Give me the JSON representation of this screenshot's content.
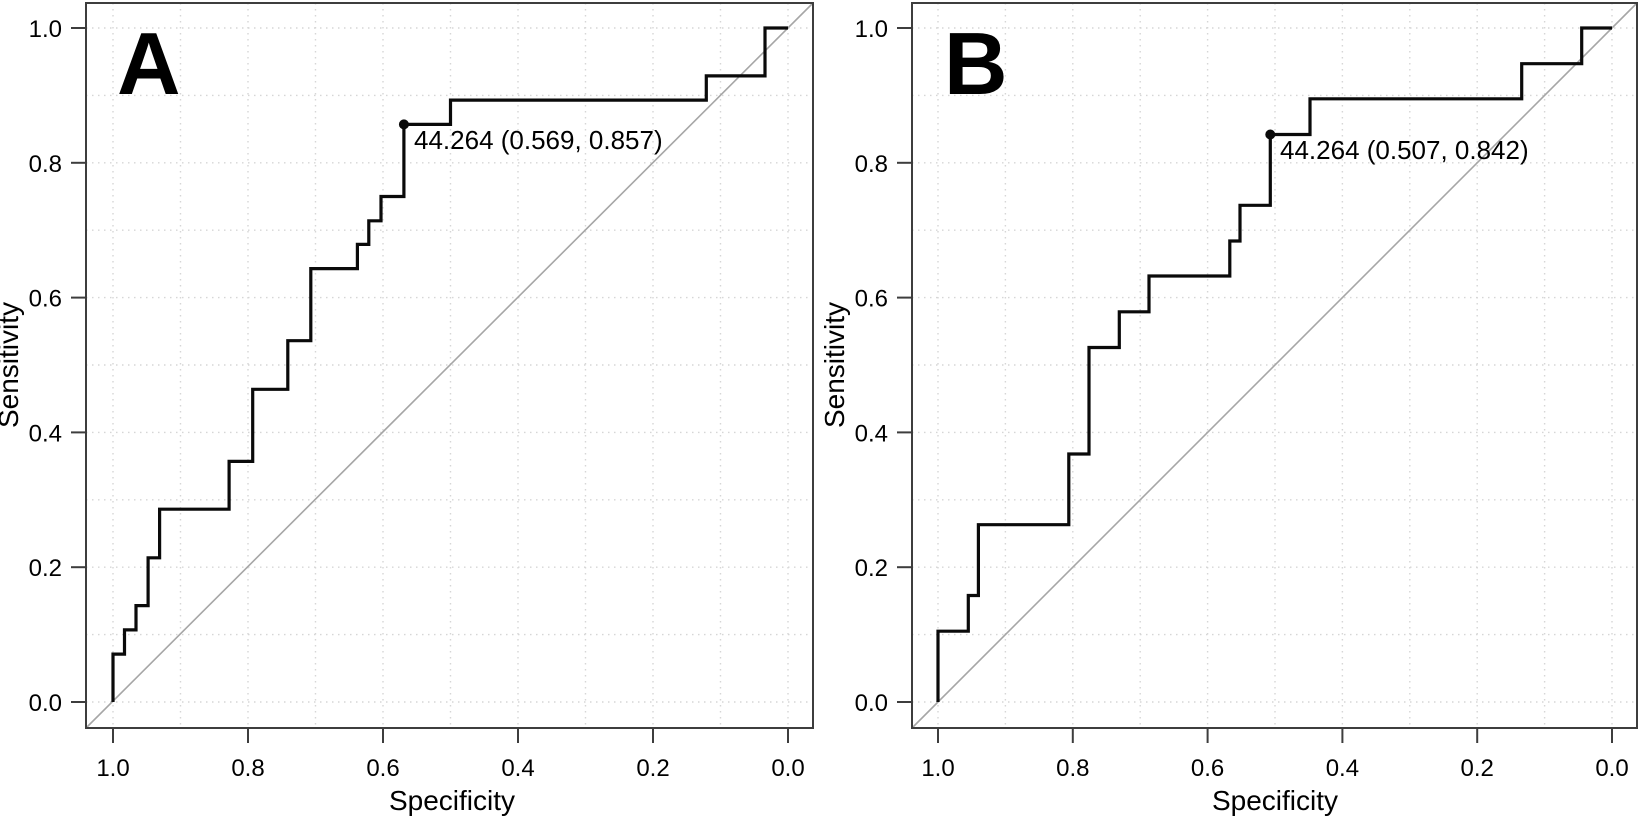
{
  "figure": {
    "type": "roc-comparison",
    "background": "#ffffff",
    "colors": {
      "curve": "#0a0a0a",
      "diagonal_line": "#a6a6a6",
      "gridlines": "#d6d6d6",
      "frame": "#3d3d3d",
      "tick_marks": "#3d3d3d",
      "text": "#000000",
      "marker": "#0a0a0a"
    }
  },
  "chart_data": [
    {
      "type": "line",
      "subtype": "roc-step-curve",
      "panel_label": "A",
      "xlabel": "Specificity",
      "ylabel": "Sensitivity",
      "x_axis": {
        "range": [
          1.0,
          0.0
        ],
        "reversed": true,
        "tick_values": [
          1.0,
          0.8,
          0.6,
          0.4,
          0.2,
          0.0
        ],
        "tick_labels": [
          "1.0",
          "0.8",
          "0.6",
          "0.4",
          "0.2",
          "0.0"
        ],
        "grid_step": 0.1,
        "grid_on": true
      },
      "y_axis": {
        "range": [
          0.0,
          1.0
        ],
        "tick_values": [
          0.0,
          0.2,
          0.4,
          0.6,
          0.8,
          1.0
        ],
        "tick_labels": [
          "0.0",
          "0.2",
          "0.4",
          "0.6",
          "0.8",
          "1.0"
        ],
        "grid_step": 0.1,
        "grid_on": true
      },
      "diagonal_reference_line": true,
      "series": [
        {
          "name": "ROC curve",
          "points": [
            [
              1.0,
              0.0
            ],
            [
              1.0,
              0.071
            ],
            [
              0.983,
              0.071
            ],
            [
              0.983,
              0.107
            ],
            [
              0.966,
              0.107
            ],
            [
              0.966,
              0.143
            ],
            [
              0.948,
              0.143
            ],
            [
              0.948,
              0.214
            ],
            [
              0.931,
              0.214
            ],
            [
              0.931,
              0.286
            ],
            [
              0.828,
              0.286
            ],
            [
              0.828,
              0.357
            ],
            [
              0.793,
              0.357
            ],
            [
              0.793,
              0.464
            ],
            [
              0.741,
              0.464
            ],
            [
              0.741,
              0.536
            ],
            [
              0.707,
              0.536
            ],
            [
              0.707,
              0.643
            ],
            [
              0.638,
              0.643
            ],
            [
              0.638,
              0.679
            ],
            [
              0.621,
              0.679
            ],
            [
              0.621,
              0.714
            ],
            [
              0.603,
              0.714
            ],
            [
              0.603,
              0.75
            ],
            [
              0.569,
              0.75
            ],
            [
              0.569,
              0.857
            ],
            [
              0.5,
              0.857
            ],
            [
              0.5,
              0.893
            ],
            [
              0.121,
              0.893
            ],
            [
              0.121,
              0.929
            ],
            [
              0.034,
              0.929
            ],
            [
              0.034,
              1.0
            ],
            [
              0.0,
              1.0
            ]
          ]
        }
      ],
      "best_threshold": {
        "label": "44.264 (0.569, 0.857)",
        "threshold": 44.264,
        "specificity": 0.569,
        "sensitivity": 0.857
      }
    },
    {
      "type": "line",
      "subtype": "roc-step-curve",
      "panel_label": "B",
      "xlabel": "Specificity",
      "ylabel": "Sensitivity",
      "x_axis": {
        "range": [
          1.0,
          0.0
        ],
        "reversed": true,
        "tick_values": [
          1.0,
          0.8,
          0.6,
          0.4,
          0.2,
          0.0
        ],
        "tick_labels": [
          "1.0",
          "0.8",
          "0.6",
          "0.4",
          "0.2",
          "0.0"
        ],
        "grid_step": 0.1,
        "grid_on": true
      },
      "y_axis": {
        "range": [
          0.0,
          1.0
        ],
        "tick_values": [
          0.0,
          0.2,
          0.4,
          0.6,
          0.8,
          1.0
        ],
        "tick_labels": [
          "0.0",
          "0.2",
          "0.4",
          "0.6",
          "0.8",
          "1.0"
        ],
        "grid_step": 0.1,
        "grid_on": true
      },
      "diagonal_reference_line": true,
      "series": [
        {
          "name": "ROC curve",
          "points": [
            [
              1.0,
              0.0
            ],
            [
              1.0,
              0.105
            ],
            [
              0.955,
              0.105
            ],
            [
              0.955,
              0.158
            ],
            [
              0.94,
              0.158
            ],
            [
              0.94,
              0.263
            ],
            [
              0.806,
              0.263
            ],
            [
              0.806,
              0.368
            ],
            [
              0.776,
              0.368
            ],
            [
              0.776,
              0.526
            ],
            [
              0.731,
              0.526
            ],
            [
              0.731,
              0.579
            ],
            [
              0.687,
              0.579
            ],
            [
              0.687,
              0.632
            ],
            [
              0.567,
              0.632
            ],
            [
              0.567,
              0.684
            ],
            [
              0.552,
              0.684
            ],
            [
              0.552,
              0.737
            ],
            [
              0.507,
              0.737
            ],
            [
              0.507,
              0.842
            ],
            [
              0.448,
              0.842
            ],
            [
              0.448,
              0.895
            ],
            [
              0.134,
              0.895
            ],
            [
              0.134,
              0.947
            ],
            [
              0.045,
              0.947
            ],
            [
              0.045,
              1.0
            ],
            [
              0.0,
              1.0
            ]
          ]
        }
      ],
      "best_threshold": {
        "label": "44.264 (0.507, 0.842)",
        "threshold": 44.264,
        "specificity": 0.507,
        "sensitivity": 0.842
      }
    }
  ]
}
